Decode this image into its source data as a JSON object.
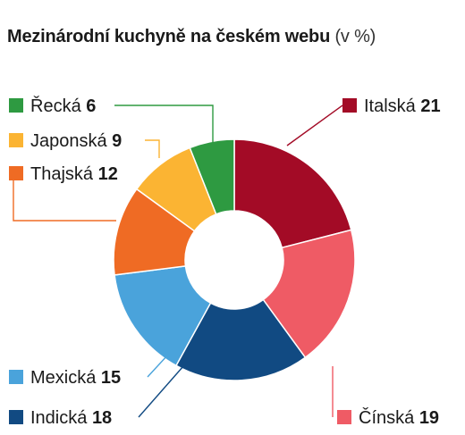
{
  "chart_data": {
    "type": "pie",
    "donut": true,
    "title": "Mezinárodní kuchyně na českém webu",
    "unit": "(v %)",
    "slices": [
      {
        "label": "Italská",
        "value": 21,
        "color": "#a30b26"
      },
      {
        "label": "Čínská",
        "value": 19,
        "color": "#ef5b65"
      },
      {
        "label": "Indická",
        "value": 18,
        "color": "#114a82"
      },
      {
        "label": "Mexická",
        "value": 15,
        "color": "#4aa3db"
      },
      {
        "label": "Thajská",
        "value": 12,
        "color": "#ef6b24"
      },
      {
        "label": "Japonská",
        "value": 9,
        "color": "#fbb433"
      },
      {
        "label": "Řecká",
        "value": 6,
        "color": "#2e9a41"
      }
    ]
  }
}
